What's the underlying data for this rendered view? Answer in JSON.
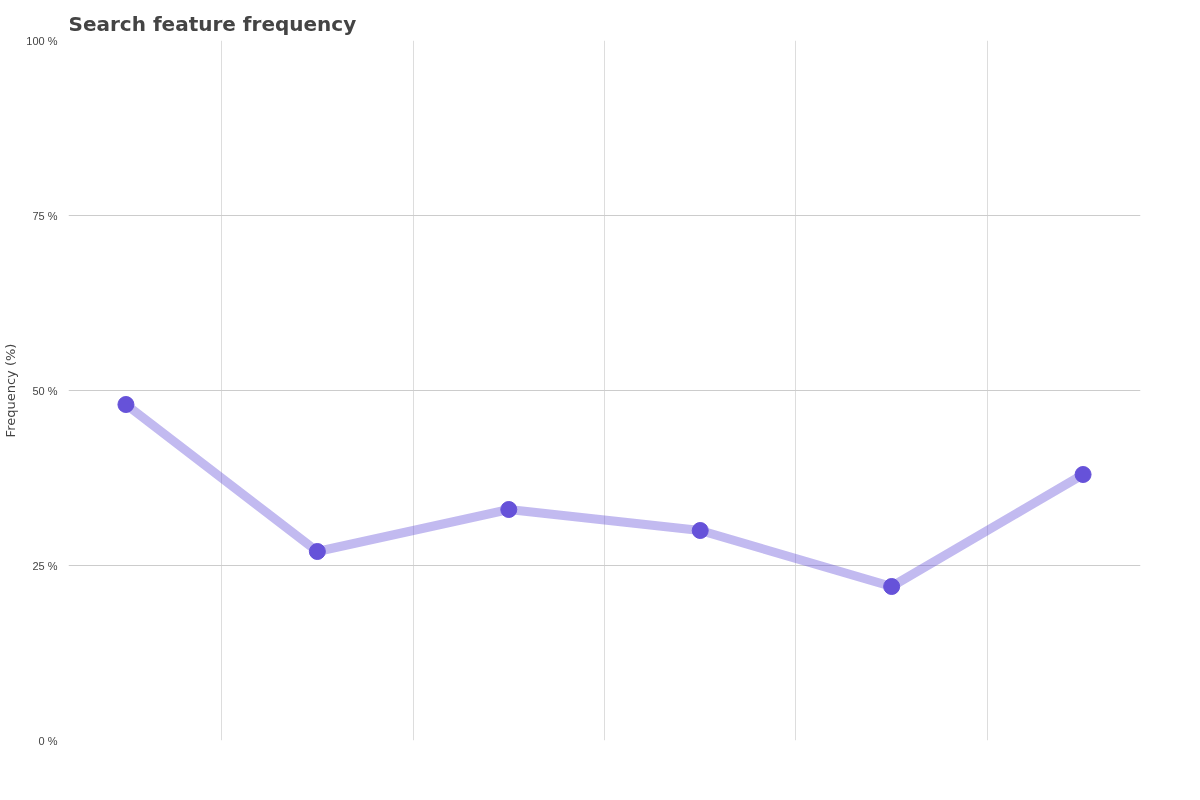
{
  "chart_data": {
    "type": "line",
    "title": "Search feature frequency",
    "ylabel": "Frequency (%)",
    "categories": [
      null,
      null,
      null,
      null,
      null,
      null
    ],
    "series": [
      {
        "color": "#6652d9",
        "values": [
          48,
          27,
          33,
          30,
          22,
          38
        ]
      }
    ],
    "ylim": [
      0,
      100
    ],
    "yticks": [
      {
        "value": 0,
        "label": "0 %"
      },
      {
        "value": 25,
        "label": "25 %"
      },
      {
        "value": 50,
        "label": "50 %"
      },
      {
        "value": 75,
        "label": "75 %"
      },
      {
        "value": 100,
        "label": "100 %"
      }
    ],
    "grid": true,
    "marker": "circle",
    "line_style": "solid"
  }
}
